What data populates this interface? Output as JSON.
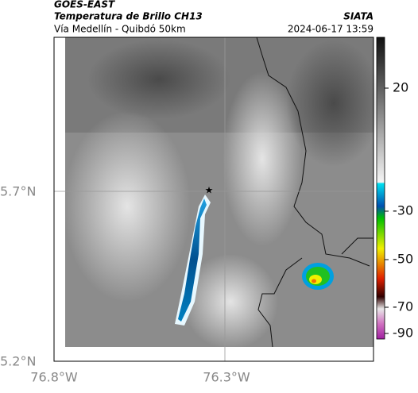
{
  "header": {
    "source": "GOES-EAST",
    "title": "Temperatura de Brillo CH13",
    "subtitle": "Vía Medellín - Quibdó 50km",
    "brand": "SIATA",
    "timestamp": "2024-06-17 13:59"
  },
  "axes": {
    "y_labels": [
      "5.7°N",
      "5.2°N"
    ],
    "x_labels": [
      "76.8°W",
      "76.3°W"
    ]
  },
  "colorbar": {
    "ticks": [
      20,
      -30,
      -50,
      -70,
      -90
    ]
  }
}
